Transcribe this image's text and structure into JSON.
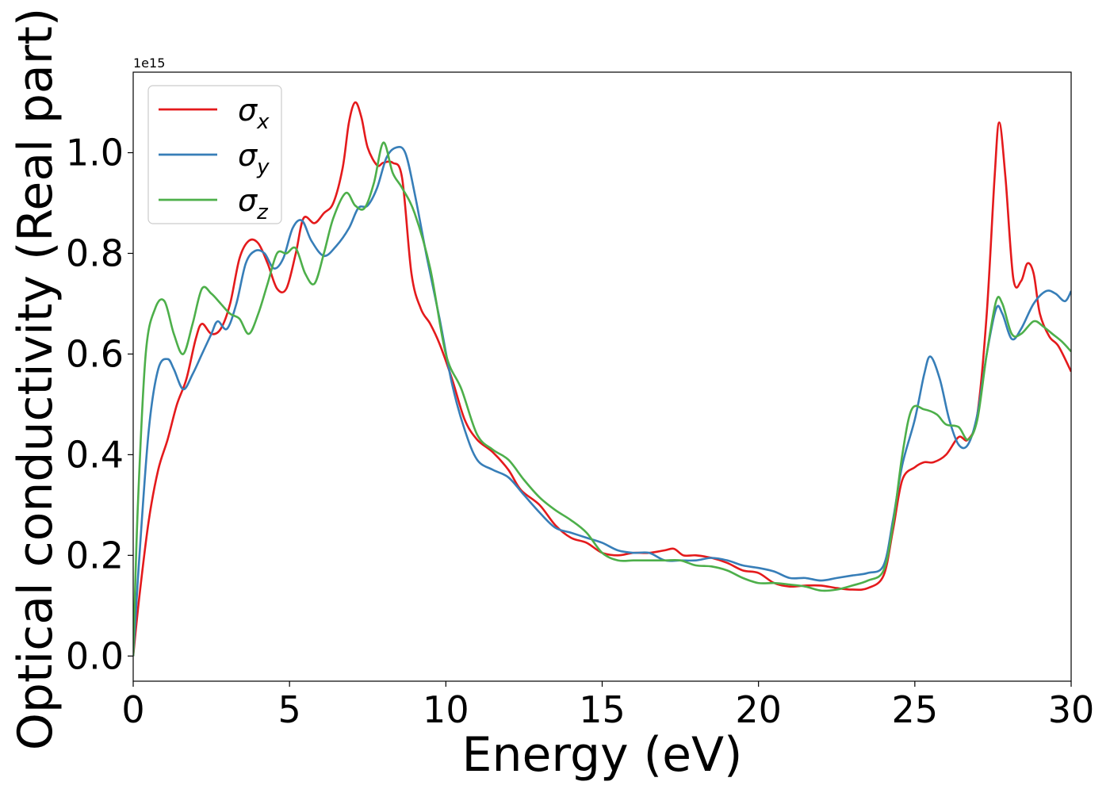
{
  "chart_data": {
    "type": "line",
    "xlabel": "Energy (eV)",
    "ylabel": "Optical conductivity (Real part)",
    "offset_text": "1e15",
    "xlim": [
      0,
      30
    ],
    "ylim": [
      -0.05,
      1.16
    ],
    "x_ticks": [
      0,
      5,
      10,
      15,
      20,
      25,
      30
    ],
    "x_tick_labels": [
      "0",
      "5",
      "10",
      "15",
      "20",
      "25",
      "30"
    ],
    "y_ticks": [
      0.0,
      0.2,
      0.4,
      0.6,
      0.8,
      1.0
    ],
    "y_tick_labels": [
      "0.0",
      "0.2",
      "0.4",
      "0.6",
      "0.8",
      "1.0"
    ],
    "grid": false,
    "legend_position": "top-left",
    "series": [
      {
        "name": "σx",
        "symbol": "σ",
        "subscript": "x",
        "color": "#e41a1c",
        "points": [
          [
            0,
            0.0
          ],
          [
            0.2,
            0.12
          ],
          [
            0.5,
            0.27
          ],
          [
            0.8,
            0.37
          ],
          [
            1.1,
            0.43
          ],
          [
            1.4,
            0.5
          ],
          [
            1.7,
            0.55
          ],
          [
            2.0,
            0.63
          ],
          [
            2.2,
            0.66
          ],
          [
            2.5,
            0.64
          ],
          [
            2.8,
            0.65
          ],
          [
            3.1,
            0.7
          ],
          [
            3.4,
            0.79
          ],
          [
            3.7,
            0.825
          ],
          [
            4.0,
            0.82
          ],
          [
            4.3,
            0.78
          ],
          [
            4.6,
            0.73
          ],
          [
            4.9,
            0.73
          ],
          [
            5.2,
            0.8
          ],
          [
            5.45,
            0.87
          ],
          [
            5.8,
            0.86
          ],
          [
            6.1,
            0.88
          ],
          [
            6.4,
            0.9
          ],
          [
            6.7,
            0.97
          ],
          [
            6.9,
            1.06
          ],
          [
            7.1,
            1.1
          ],
          [
            7.3,
            1.07
          ],
          [
            7.5,
            1.01
          ],
          [
            7.8,
            0.975
          ],
          [
            8.0,
            0.98
          ],
          [
            8.3,
            0.98
          ],
          [
            8.6,
            0.95
          ],
          [
            8.9,
            0.76
          ],
          [
            9.2,
            0.69
          ],
          [
            9.5,
            0.66
          ],
          [
            9.8,
            0.62
          ],
          [
            10.2,
            0.55
          ],
          [
            10.6,
            0.47
          ],
          [
            11.0,
            0.43
          ],
          [
            11.5,
            0.405
          ],
          [
            12.0,
            0.37
          ],
          [
            12.4,
            0.33
          ],
          [
            13.0,
            0.3
          ],
          [
            13.5,
            0.26
          ],
          [
            14.0,
            0.235
          ],
          [
            14.5,
            0.225
          ],
          [
            15.0,
            0.205
          ],
          [
            15.5,
            0.2
          ],
          [
            16.0,
            0.205
          ],
          [
            16.5,
            0.205
          ],
          [
            17.0,
            0.21
          ],
          [
            17.3,
            0.213
          ],
          [
            17.6,
            0.2
          ],
          [
            18.0,
            0.2
          ],
          [
            18.5,
            0.195
          ],
          [
            19.0,
            0.185
          ],
          [
            19.5,
            0.17
          ],
          [
            20.0,
            0.165
          ],
          [
            20.5,
            0.145
          ],
          [
            21.0,
            0.138
          ],
          [
            21.5,
            0.14
          ],
          [
            22.0,
            0.14
          ],
          [
            22.5,
            0.135
          ],
          [
            23.0,
            0.132
          ],
          [
            23.5,
            0.135
          ],
          [
            24.0,
            0.16
          ],
          [
            24.3,
            0.25
          ],
          [
            24.6,
            0.35
          ],
          [
            25.0,
            0.375
          ],
          [
            25.3,
            0.385
          ],
          [
            25.6,
            0.385
          ],
          [
            26.0,
            0.4
          ],
          [
            26.4,
            0.435
          ],
          [
            26.7,
            0.43
          ],
          [
            27.0,
            0.48
          ],
          [
            27.3,
            0.68
          ],
          [
            27.55,
            0.95
          ],
          [
            27.7,
            1.06
          ],
          [
            27.9,
            0.95
          ],
          [
            28.15,
            0.75
          ],
          [
            28.4,
            0.745
          ],
          [
            28.6,
            0.78
          ],
          [
            28.8,
            0.76
          ],
          [
            29.0,
            0.68
          ],
          [
            29.3,
            0.635
          ],
          [
            29.6,
            0.615
          ],
          [
            30.0,
            0.565
          ]
        ]
      },
      {
        "name": "σy",
        "symbol": "σ",
        "subscript": "y",
        "color": "#377eb8",
        "points": [
          [
            0,
            0.0
          ],
          [
            0.2,
            0.2
          ],
          [
            0.5,
            0.45
          ],
          [
            0.8,
            0.57
          ],
          [
            1.1,
            0.59
          ],
          [
            1.3,
            0.57
          ],
          [
            1.6,
            0.53
          ],
          [
            1.9,
            0.56
          ],
          [
            2.2,
            0.6
          ],
          [
            2.5,
            0.64
          ],
          [
            2.7,
            0.665
          ],
          [
            3.0,
            0.65
          ],
          [
            3.3,
            0.7
          ],
          [
            3.6,
            0.78
          ],
          [
            3.9,
            0.805
          ],
          [
            4.2,
            0.8
          ],
          [
            4.5,
            0.77
          ],
          [
            4.8,
            0.79
          ],
          [
            5.1,
            0.85
          ],
          [
            5.4,
            0.865
          ],
          [
            5.7,
            0.825
          ],
          [
            6.1,
            0.795
          ],
          [
            6.5,
            0.815
          ],
          [
            6.9,
            0.85
          ],
          [
            7.2,
            0.89
          ],
          [
            7.5,
            0.895
          ],
          [
            7.8,
            0.93
          ],
          [
            8.1,
            0.99
          ],
          [
            8.4,
            1.01
          ],
          [
            8.7,
            1.0
          ],
          [
            9.0,
            0.92
          ],
          [
            9.4,
            0.79
          ],
          [
            9.8,
            0.67
          ],
          [
            10.2,
            0.54
          ],
          [
            10.6,
            0.45
          ],
          [
            11.0,
            0.39
          ],
          [
            11.5,
            0.37
          ],
          [
            12.0,
            0.355
          ],
          [
            12.5,
            0.32
          ],
          [
            13.0,
            0.285
          ],
          [
            13.5,
            0.255
          ],
          [
            14.0,
            0.245
          ],
          [
            14.5,
            0.235
          ],
          [
            15.0,
            0.225
          ],
          [
            15.5,
            0.21
          ],
          [
            16.0,
            0.205
          ],
          [
            16.5,
            0.205
          ],
          [
            17.0,
            0.19
          ],
          [
            17.5,
            0.19
          ],
          [
            18.0,
            0.19
          ],
          [
            18.5,
            0.195
          ],
          [
            19.0,
            0.19
          ],
          [
            19.5,
            0.18
          ],
          [
            20.0,
            0.175
          ],
          [
            20.5,
            0.168
          ],
          [
            21.0,
            0.155
          ],
          [
            21.5,
            0.155
          ],
          [
            22.0,
            0.15
          ],
          [
            22.5,
            0.155
          ],
          [
            23.0,
            0.16
          ],
          [
            23.5,
            0.165
          ],
          [
            24.0,
            0.18
          ],
          [
            24.3,
            0.27
          ],
          [
            24.6,
            0.38
          ],
          [
            25.0,
            0.47
          ],
          [
            25.3,
            0.56
          ],
          [
            25.5,
            0.595
          ],
          [
            25.8,
            0.55
          ],
          [
            26.1,
            0.47
          ],
          [
            26.4,
            0.42
          ],
          [
            26.7,
            0.42
          ],
          [
            27.0,
            0.48
          ],
          [
            27.3,
            0.6
          ],
          [
            27.6,
            0.69
          ],
          [
            27.8,
            0.68
          ],
          [
            28.1,
            0.63
          ],
          [
            28.4,
            0.65
          ],
          [
            28.8,
            0.7
          ],
          [
            29.2,
            0.725
          ],
          [
            29.5,
            0.72
          ],
          [
            29.8,
            0.705
          ],
          [
            30.0,
            0.725
          ]
        ]
      },
      {
        "name": "σz",
        "symbol": "σ",
        "subscript": "z",
        "color": "#4daf4a",
        "points": [
          [
            0,
            0.0
          ],
          [
            0.15,
            0.3
          ],
          [
            0.4,
            0.6
          ],
          [
            0.7,
            0.69
          ],
          [
            1.0,
            0.705
          ],
          [
            1.3,
            0.64
          ],
          [
            1.6,
            0.6
          ],
          [
            1.9,
            0.66
          ],
          [
            2.2,
            0.73
          ],
          [
            2.5,
            0.72
          ],
          [
            2.8,
            0.7
          ],
          [
            3.1,
            0.68
          ],
          [
            3.4,
            0.67
          ],
          [
            3.7,
            0.64
          ],
          [
            4.0,
            0.68
          ],
          [
            4.3,
            0.74
          ],
          [
            4.6,
            0.8
          ],
          [
            4.9,
            0.8
          ],
          [
            5.2,
            0.81
          ],
          [
            5.5,
            0.76
          ],
          [
            5.8,
            0.74
          ],
          [
            6.1,
            0.8
          ],
          [
            6.4,
            0.87
          ],
          [
            6.8,
            0.92
          ],
          [
            7.1,
            0.895
          ],
          [
            7.4,
            0.89
          ],
          [
            7.7,
            0.94
          ],
          [
            8.0,
            1.02
          ],
          [
            8.3,
            0.96
          ],
          [
            8.6,
            0.93
          ],
          [
            9.0,
            0.88
          ],
          [
            9.5,
            0.77
          ],
          [
            10.0,
            0.6
          ],
          [
            10.5,
            0.53
          ],
          [
            11.0,
            0.44
          ],
          [
            11.5,
            0.41
          ],
          [
            12.0,
            0.39
          ],
          [
            12.5,
            0.35
          ],
          [
            13.0,
            0.315
          ],
          [
            13.5,
            0.29
          ],
          [
            14.0,
            0.27
          ],
          [
            14.5,
            0.245
          ],
          [
            15.0,
            0.205
          ],
          [
            15.5,
            0.19
          ],
          [
            16.0,
            0.19
          ],
          [
            16.5,
            0.19
          ],
          [
            17.0,
            0.19
          ],
          [
            17.5,
            0.19
          ],
          [
            18.0,
            0.18
          ],
          [
            18.5,
            0.178
          ],
          [
            19.0,
            0.17
          ],
          [
            19.5,
            0.155
          ],
          [
            20.0,
            0.145
          ],
          [
            20.5,
            0.145
          ],
          [
            21.0,
            0.142
          ],
          [
            21.5,
            0.138
          ],
          [
            22.0,
            0.13
          ],
          [
            22.5,
            0.132
          ],
          [
            23.0,
            0.14
          ],
          [
            23.5,
            0.15
          ],
          [
            24.0,
            0.17
          ],
          [
            24.3,
            0.26
          ],
          [
            24.6,
            0.4
          ],
          [
            24.9,
            0.49
          ],
          [
            25.3,
            0.49
          ],
          [
            25.7,
            0.48
          ],
          [
            26.0,
            0.46
          ],
          [
            26.4,
            0.455
          ],
          [
            26.7,
            0.43
          ],
          [
            27.0,
            0.47
          ],
          [
            27.3,
            0.6
          ],
          [
            27.6,
            0.705
          ],
          [
            27.8,
            0.7
          ],
          [
            28.1,
            0.64
          ],
          [
            28.4,
            0.64
          ],
          [
            28.8,
            0.665
          ],
          [
            29.1,
            0.655
          ],
          [
            29.4,
            0.64
          ],
          [
            29.7,
            0.625
          ],
          [
            30.0,
            0.605
          ]
        ]
      }
    ]
  }
}
